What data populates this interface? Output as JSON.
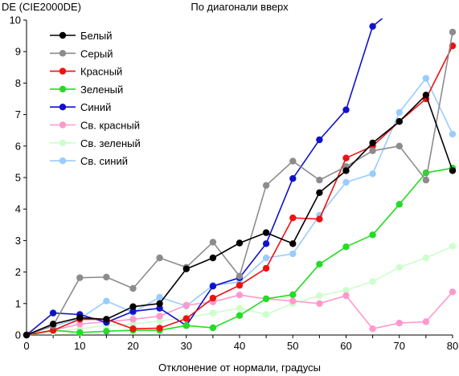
{
  "chart_data": {
    "type": "line",
    "title": "По диагонали вверх",
    "ylabel": "DE (CIE2000DE)",
    "xlabel": "Отклонение от нормали, градусы",
    "x": [
      0,
      5,
      10,
      15,
      20,
      25,
      30,
      35,
      40,
      45,
      50,
      55,
      60,
      65,
      70,
      75,
      80
    ],
    "xlim": [
      0,
      80
    ],
    "ylim": [
      0,
      10
    ],
    "xticks": [
      "0",
      "10",
      "20",
      "30",
      "40",
      "50",
      "60",
      "70",
      "80"
    ],
    "yticks": [
      "0",
      "1",
      "2",
      "3",
      "4",
      "5",
      "6",
      "7",
      "8",
      "9",
      "10"
    ],
    "grid": false,
    "legend_position": "top-left",
    "series": [
      {
        "name": "Белый",
        "color": "#000000",
        "values": [
          0,
          0.35,
          0.55,
          0.5,
          0.9,
          1.0,
          2.1,
          2.45,
          2.92,
          3.25,
          2.9,
          4.52,
          5.22,
          6.1,
          6.78,
          7.62,
          5.22
        ]
      },
      {
        "name": "Серый",
        "color": "#8c8c8c",
        "values": [
          0,
          0.3,
          1.82,
          1.84,
          1.48,
          2.45,
          2.15,
          2.95,
          1.87,
          4.75,
          5.52,
          4.92,
          5.35,
          5.85,
          6.0,
          4.92,
          9.62
        ]
      },
      {
        "name": "Красный",
        "color": "#ee1111",
        "values": [
          0,
          0.15,
          0.5,
          0.5,
          0.2,
          0.22,
          0.52,
          1.17,
          1.58,
          2.12,
          3.72,
          3.68,
          5.62,
          6.0,
          6.78,
          7.5,
          9.18
        ]
      },
      {
        "name": "Зеленый",
        "color": "#22dd22",
        "values": [
          0,
          0.15,
          0.08,
          0.12,
          0.15,
          0.15,
          0.3,
          0.23,
          0.62,
          1.15,
          1.28,
          2.25,
          2.8,
          3.18,
          4.15,
          5.15,
          5.3
        ]
      },
      {
        "name": "Синий",
        "color": "#1111cc",
        "values": [
          0,
          0.7,
          0.65,
          0.4,
          0.75,
          0.85,
          0.3,
          1.55,
          1.82,
          2.9,
          4.97,
          6.2,
          7.15,
          9.8,
          10.5,
          null,
          null
        ]
      },
      {
        "name": "Св. красный",
        "color": "#ff99cc",
        "values": [
          0,
          0.15,
          0.35,
          0.42,
          0.5,
          0.6,
          0.95,
          1.05,
          1.27,
          1.15,
          1.08,
          1.0,
          1.25,
          0.2,
          0.38,
          0.42,
          1.37
        ]
      },
      {
        "name": "Св. зеленый",
        "color": "#ccffcc",
        "values": [
          0,
          0.1,
          0.2,
          0.3,
          0.35,
          0.45,
          0.55,
          0.7,
          0.85,
          0.65,
          1.0,
          1.25,
          1.42,
          1.7,
          2.15,
          2.45,
          2.82
        ]
      },
      {
        "name": "Св. синий",
        "color": "#99ccff",
        "values": [
          0,
          0.28,
          0.52,
          1.08,
          0.72,
          1.2,
          0.92,
          1.58,
          1.68,
          2.45,
          2.58,
          3.8,
          4.85,
          5.12,
          7.07,
          8.15,
          6.38
        ]
      }
    ]
  }
}
